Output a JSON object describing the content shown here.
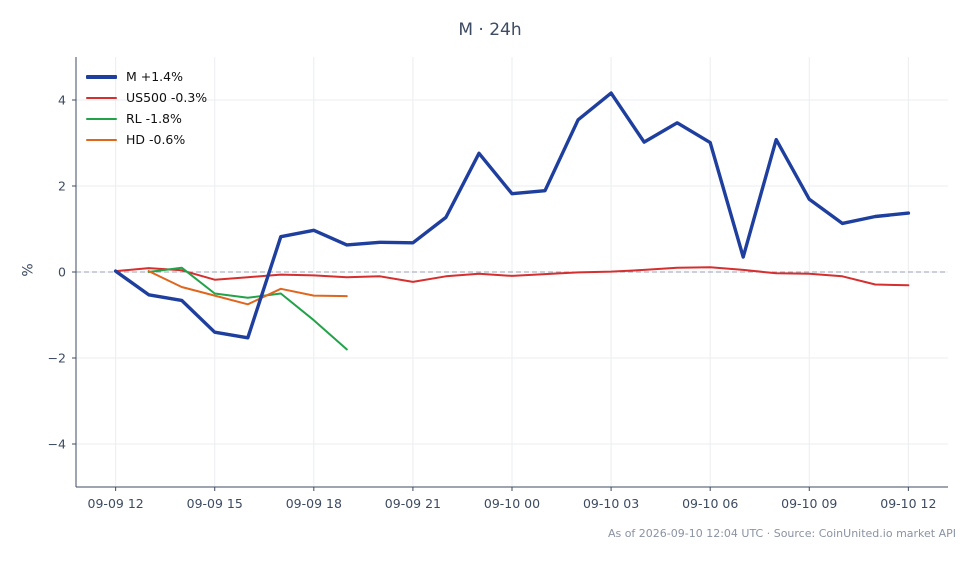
{
  "chart_data": {
    "type": "line",
    "title": "M · 24h",
    "xlabel": "",
    "ylabel": "%",
    "ylim": [
      -5,
      5
    ],
    "yticks": [
      -4,
      -2,
      0,
      2,
      4
    ],
    "ytick_labels": [
      "−4",
      "−2",
      "0",
      "2",
      "4"
    ],
    "xlim": [
      "2026-09-09 10:48",
      "2026-09-10 13:12"
    ],
    "xticks": [
      "2026-09-09 12:00",
      "2026-09-09 15:00",
      "2026-09-09 18:00",
      "2026-09-09 21:00",
      "2026-09-10 00:00",
      "2026-09-10 03:00",
      "2026-09-10 06:00",
      "2026-09-10 09:00",
      "2026-09-10 12:00"
    ],
    "xtick_labels": [
      "09-09 12",
      "09-09 15",
      "09-09 18",
      "09-09 21",
      "09-10 00",
      "09-10 03",
      "09-10 06",
      "09-10 09",
      "09-10 12"
    ],
    "grid": true,
    "legend_position": "top-left",
    "zero_line": true,
    "series": [
      {
        "name": "M +1.4%",
        "color": "#1f3f9e",
        "emphasis": true,
        "x": [
          "2026-09-09 12:00",
          "2026-09-09 13:00",
          "2026-09-09 14:00",
          "2026-09-09 15:00",
          "2026-09-09 16:00",
          "2026-09-09 17:00",
          "2026-09-09 18:00",
          "2026-09-09 19:00",
          "2026-09-09 20:00",
          "2026-09-09 21:00",
          "2026-09-09 22:00",
          "2026-09-09 23:00",
          "2026-09-10 00:00",
          "2026-09-10 01:00",
          "2026-09-10 02:00",
          "2026-09-10 03:00",
          "2026-09-10 04:00",
          "2026-09-10 05:00",
          "2026-09-10 06:00",
          "2026-09-10 07:00",
          "2026-09-10 08:00",
          "2026-09-10 09:00",
          "2026-09-10 10:00",
          "2026-09-10 11:00",
          "2026-09-10 12:00"
        ],
        "y": [
          0.02,
          -0.53,
          -0.66,
          -1.4,
          -1.53,
          0.82,
          0.97,
          0.63,
          0.69,
          0.68,
          1.27,
          2.76,
          1.82,
          1.89,
          3.54,
          4.16,
          3.02,
          3.47,
          3.01,
          0.35,
          3.08,
          1.69,
          1.13,
          1.29,
          1.37
        ]
      },
      {
        "name": "US500 -0.3%",
        "color": "#d62f2f",
        "x": [
          "2026-09-09 12:00",
          "2026-09-09 13:00",
          "2026-09-09 14:00",
          "2026-09-09 15:00",
          "2026-09-09 16:00",
          "2026-09-09 17:00",
          "2026-09-09 18:00",
          "2026-09-09 19:00",
          "2026-09-09 20:00",
          "2026-09-09 21:00",
          "2026-09-09 22:00",
          "2026-09-09 23:00",
          "2026-09-10 00:00",
          "2026-09-10 01:00",
          "2026-09-10 02:00",
          "2026-09-10 03:00",
          "2026-09-10 04:00",
          "2026-09-10 05:00",
          "2026-09-10 06:00",
          "2026-09-10 07:00",
          "2026-09-10 08:00",
          "2026-09-10 09:00",
          "2026-09-10 10:00",
          "2026-09-10 11:00",
          "2026-09-10 12:00"
        ],
        "y": [
          0.02,
          0.09,
          0.04,
          -0.18,
          -0.12,
          -0.06,
          -0.08,
          -0.12,
          -0.1,
          -0.23,
          -0.1,
          -0.04,
          -0.09,
          -0.05,
          -0.01,
          0.01,
          0.05,
          0.1,
          0.11,
          0.05,
          -0.03,
          -0.04,
          -0.1,
          -0.29,
          -0.31
        ]
      },
      {
        "name": "RL -1.8%",
        "color": "#22a34a",
        "x": [
          "2026-09-09 13:00",
          "2026-09-09 14:00",
          "2026-09-09 15:00",
          "2026-09-09 16:00",
          "2026-09-09 17:00",
          "2026-09-09 18:00",
          "2026-09-09 19:00"
        ],
        "y": [
          0.0,
          0.1,
          -0.5,
          -0.6,
          -0.5,
          -1.12,
          -1.8
        ]
      },
      {
        "name": "HD -0.6%",
        "color": "#e0651d",
        "x": [
          "2026-09-09 13:00",
          "2026-09-09 14:00",
          "2026-09-09 15:00",
          "2026-09-09 16:00",
          "2026-09-09 17:00",
          "2026-09-09 18:00",
          "2026-09-09 19:00"
        ],
        "y": [
          0.02,
          -0.35,
          -0.55,
          -0.75,
          -0.39,
          -0.55,
          -0.56
        ]
      }
    ]
  },
  "footer": {
    "note": "As of 2026-09-10 12:04 UTC · Source: CoinUnited.io market API"
  }
}
